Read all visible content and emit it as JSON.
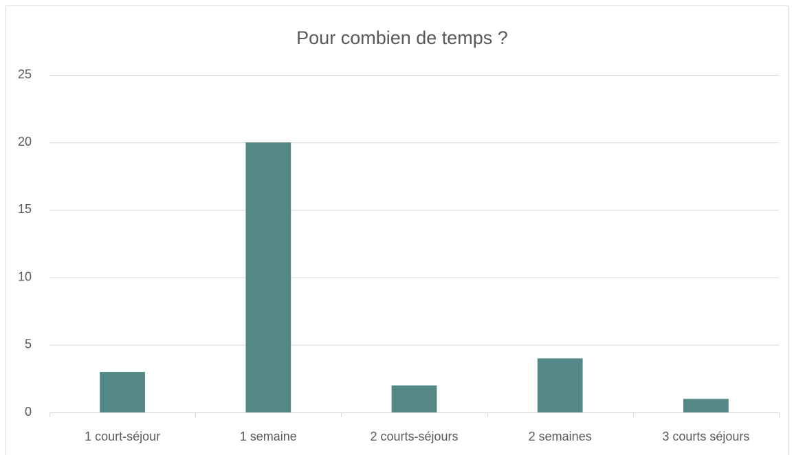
{
  "chart_data": {
    "type": "bar",
    "title": "Pour combien de temps ?",
    "categories": [
      "1 court-séjour",
      "1 semaine",
      "2 courts-séjours",
      "2 semaines",
      "3 courts séjours"
    ],
    "values": [
      3,
      20,
      2,
      4,
      1
    ],
    "color": "#538887",
    "ylim": [
      0,
      25
    ],
    "yticks": [
      0,
      5,
      10,
      15,
      20,
      25
    ],
    "grid": true
  }
}
